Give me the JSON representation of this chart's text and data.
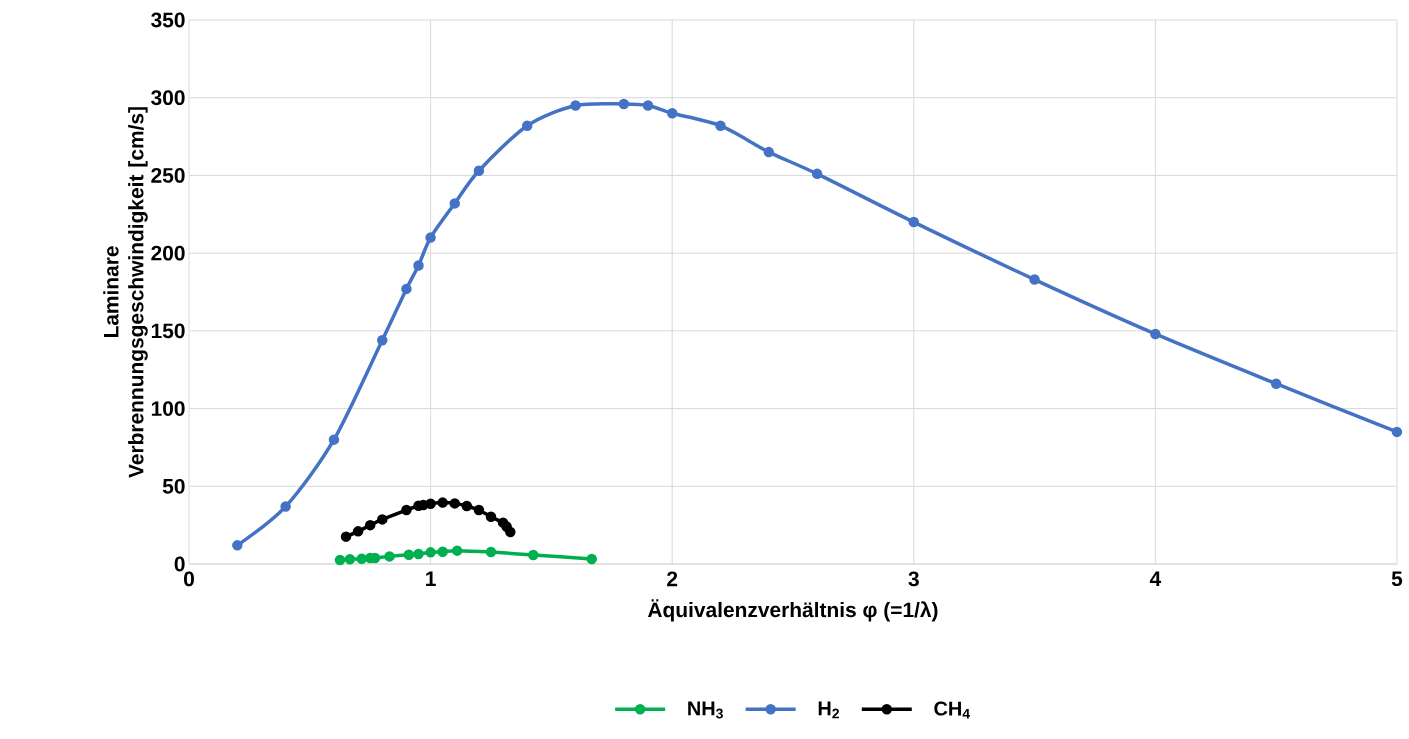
{
  "chart_data": {
    "type": "line",
    "xlabel": "Äquivalenzverhältnis φ (=1/λ)",
    "ylabel": "Laminare Verbrennungsgeschwindigkeit [cm/s]",
    "xlim": [
      0,
      5
    ],
    "ylim": [
      0,
      350
    ],
    "xticks": [
      0,
      1,
      2,
      3,
      4,
      5
    ],
    "yticks": [
      0,
      50,
      100,
      150,
      200,
      250,
      300,
      350
    ],
    "grid": true,
    "legend": "bottom",
    "marker": "circle",
    "series": [
      {
        "name": "NH$_{3}$",
        "color": "#00b050",
        "x": [
          0.625,
          0.666,
          0.715,
          0.75,
          0.77,
          0.83,
          0.91,
          0.95,
          1.0,
          1.05,
          1.11,
          1.25,
          1.425,
          1.667
        ],
        "values": [
          2.6,
          3,
          3.4,
          3.9,
          3.9,
          4.9,
          6,
          6.4,
          7.5,
          7.9,
          8.6,
          7.7,
          5.8,
          3.2
        ]
      },
      {
        "name": "H$_{2}$",
        "color": "#4472c4",
        "x": [
          0.2,
          0.4,
          0.6,
          0.8,
          0.9,
          0.95,
          1.0,
          1.1,
          1.2,
          1.4,
          1.6,
          1.8,
          1.9,
          2.0,
          2.2,
          2.4,
          2.6,
          3,
          3.5,
          4,
          4.5,
          5
        ],
        "values": [
          12,
          37,
          80,
          144,
          177,
          192,
          210,
          232,
          253,
          282,
          295,
          296,
          295,
          290,
          282,
          265,
          251,
          220,
          183,
          148,
          116,
          85
        ]
      },
      {
        "name": "CH$_{4}$",
        "color": "#000000",
        "x": [
          0.65,
          0.7,
          0.75,
          0.8,
          0.9,
          0.95,
          0.97,
          1.0,
          1.05,
          1.1,
          1.15,
          1.2,
          1.25,
          1.3,
          1.315,
          1.33
        ],
        "values": [
          17.6,
          21,
          25,
          28.7,
          34.7,
          37.5,
          38,
          38.8,
          39.5,
          39,
          37.3,
          34.7,
          30.4,
          26.6,
          24,
          20.6
        ]
      }
    ]
  }
}
